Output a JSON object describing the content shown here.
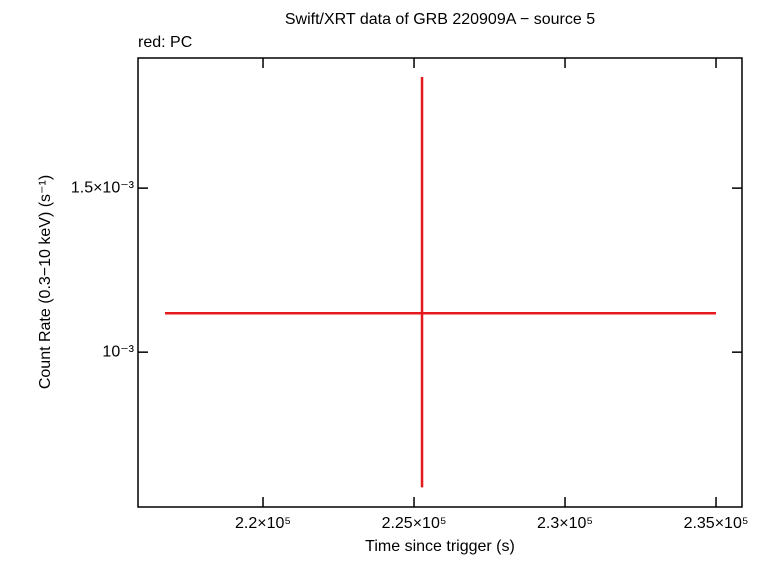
{
  "chart_data": {
    "type": "errorbar",
    "title": "Swift/XRT data of GRB 220909A − source 5",
    "subtitle": "red: PC",
    "x_label": "Time since trigger (s)",
    "y_label": "Count Rate (0.3−10 keV) (s⁻¹)",
    "y_log": true,
    "xlim": [
      215860,
      235860
    ],
    "ylim": [
      0.000682,
      0.002069
    ],
    "xticks": [
      {
        "value": 220000,
        "label": "2.2×10⁵"
      },
      {
        "value": 225000,
        "label": "2.25×10⁵"
      },
      {
        "value": 230000,
        "label": "2.3×10⁵"
      },
      {
        "value": 235000,
        "label": "2.35×10⁵"
      }
    ],
    "yticks": [
      {
        "value": 0.001,
        "label": "10⁻³"
      },
      {
        "value": 0.0015,
        "label": "1.5×10⁻³"
      }
    ],
    "series": [
      {
        "color": "#e41a1c",
        "x": [
          225265
        ],
        "values": [
          0.001101
        ],
        "xerr": [
          [
            8510
          ],
          [
            9735
          ]
        ],
        "yerr": [
          [
            0.000385
          ],
          [
            0.000873
          ]
        ]
      }
    ]
  }
}
